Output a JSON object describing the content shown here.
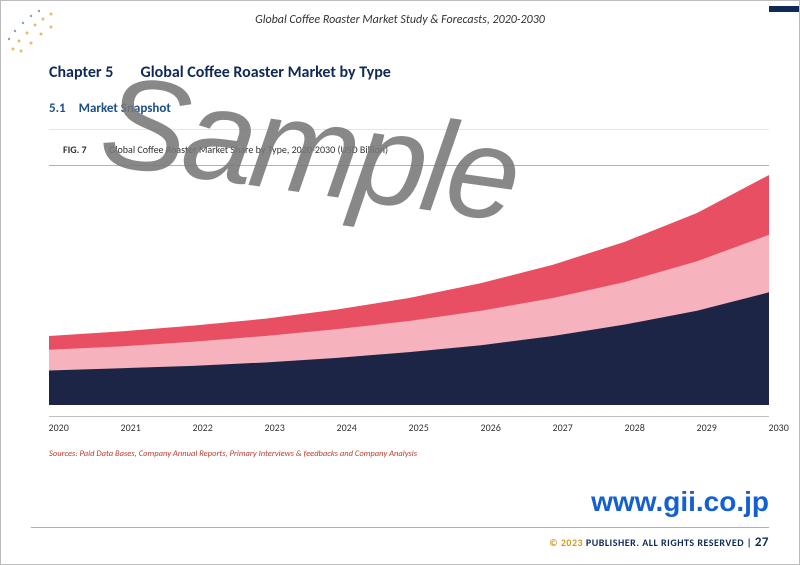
{
  "header": {
    "doc_title": "Global Coffee Roaster Market Study & Forecasts, 2020-2030"
  },
  "chapter": {
    "label": "Chapter 5",
    "title": "Global Coffee Roaster Market by Type"
  },
  "section": {
    "number": "5.1",
    "title": "Market Snapshot"
  },
  "figure": {
    "label": "FIG. 7",
    "caption": "Global Coffee Roaster Market Share by Type, 2020-2030 (USD Billion)"
  },
  "chart": {
    "type": "area",
    "x_labels": [
      "2020",
      "2021",
      "2022",
      "2023",
      "2024",
      "2025",
      "2026",
      "2027",
      "2028",
      "2029",
      "2030"
    ],
    "series": [
      {
        "name": "series-a",
        "color": "#e94f62",
        "opacity": 1.0,
        "values": [
          60,
          64,
          69,
          75,
          83,
          93,
          106,
          122,
          142,
          167,
          200
        ]
      },
      {
        "name": "series-b",
        "color": "#f6b3bd",
        "opacity": 1.0,
        "values": [
          48,
          51,
          55,
          60,
          66,
          73,
          82,
          93,
          107,
          125,
          148
        ]
      },
      {
        "name": "series-c",
        "color": "#1d2546",
        "opacity": 1.0,
        "values": [
          30,
          32,
          34,
          37,
          41,
          46,
          52,
          60,
          70,
          82,
          98
        ]
      }
    ],
    "y_max": 200,
    "axis_font_size": 10,
    "background_color": "#ffffff",
    "axis_line_color": "#bfbfbf"
  },
  "sources": {
    "text": "Sources: Paid Data Bases, Company Annual Reports, Primary Interviews & feedbacks and Company Analysis",
    "color": "#c0392b"
  },
  "watermark": {
    "sample_text": "Sample",
    "url_text": "www.gii.co.jp",
    "url_color": "#1560d0"
  },
  "footer": {
    "copyright_symbol": "© 2023",
    "publisher_text": "PUBLISHER. ALL RIGHTS RESERVED",
    "separator": "|",
    "page_number": "27"
  },
  "decor": {
    "corner_colors": {
      "dots_outer": "#e2c06a",
      "dots_inner": "#7fa3c9"
    }
  }
}
